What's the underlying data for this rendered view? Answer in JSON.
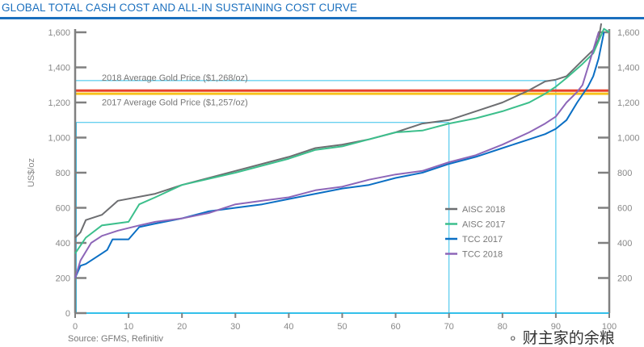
{
  "title": "GLOBAL TOTAL CASH COST AND ALL-IN SUSTAINING COST CURVE",
  "source": "Source: GFMS, Refinitiv",
  "watermark": "财主家的余粮",
  "chart_data": {
    "type": "line",
    "title": "GLOBAL TOTAL CASH COST AND ALL-IN SUSTAINING COST CURVE",
    "ylabel": "US$/oz",
    "xlabel": "",
    "xlim": [
      0,
      100
    ],
    "ylim": [
      0,
      1600
    ],
    "x_ticks": [
      0,
      10,
      20,
      30,
      40,
      50,
      60,
      70,
      80,
      90,
      100
    ],
    "y_ticks": [
      0,
      200,
      400,
      600,
      800,
      1000,
      1200,
      1400,
      1600
    ],
    "y_tick_labels": [
      "0",
      "200",
      "400",
      "600",
      "800",
      "1,000",
      "1,200",
      "1,400",
      "1,600"
    ],
    "right_y_tick_labels": [
      "200",
      "400",
      "600",
      "800",
      "1,000",
      "1,200",
      "1,400",
      "1,600"
    ],
    "right_y_ticks": [
      200,
      400,
      600,
      800,
      1000,
      1200,
      1400,
      1600
    ],
    "grid": false,
    "legend_position": "bottom-right",
    "series": [
      {
        "name": "AISC 2018",
        "color": "#6d6e71",
        "x": [
          0,
          1,
          2,
          5,
          8,
          15,
          20,
          30,
          40,
          45,
          50,
          55,
          60,
          65,
          70,
          75,
          80,
          85,
          88,
          90,
          92,
          95,
          97,
          98,
          98.5
        ],
        "y": [
          430,
          460,
          530,
          560,
          640,
          680,
          730,
          810,
          890,
          940,
          960,
          990,
          1030,
          1080,
          1100,
          1150,
          1200,
          1270,
          1320,
          1330,
          1350,
          1440,
          1500,
          1560,
          1650
        ]
      },
      {
        "name": "AISC 2017",
        "color": "#3cbf8c",
        "x": [
          0,
          2,
          5,
          10,
          12,
          15,
          20,
          30,
          40,
          45,
          50,
          55,
          60,
          65,
          70,
          75,
          80,
          85,
          88,
          90,
          92,
          95,
          97,
          98,
          99,
          100
        ],
        "y": [
          340,
          430,
          500,
          520,
          620,
          660,
          730,
          800,
          880,
          930,
          950,
          990,
          1030,
          1040,
          1080,
          1110,
          1150,
          1200,
          1250,
          1290,
          1340,
          1420,
          1480,
          1550,
          1620,
          1600
        ]
      },
      {
        "name": "TCC 2017",
        "color": "#0b6fc4",
        "x": [
          0,
          1,
          2,
          4,
          6,
          7,
          10,
          12,
          15,
          20,
          25,
          30,
          35,
          40,
          45,
          50,
          55,
          60,
          65,
          70,
          75,
          80,
          85,
          88,
          90,
          92,
          94,
          96,
          97,
          98,
          99
        ],
        "y": [
          200,
          270,
          280,
          320,
          360,
          420,
          420,
          490,
          510,
          540,
          580,
          600,
          620,
          650,
          680,
          710,
          730,
          770,
          800,
          850,
          890,
          940,
          990,
          1020,
          1050,
          1100,
          1200,
          1290,
          1350,
          1450,
          1600
        ]
      },
      {
        "name": "TCC 2018",
        "color": "#8d66b8",
        "x": [
          0,
          1,
          3,
          5,
          8,
          12,
          15,
          20,
          25,
          30,
          35,
          40,
          45,
          50,
          55,
          60,
          65,
          70,
          75,
          80,
          85,
          88,
          90,
          92,
          94,
          95,
          96,
          97,
          98
        ],
        "y": [
          200,
          300,
          400,
          440,
          470,
          500,
          520,
          540,
          570,
          620,
          640,
          660,
          700,
          720,
          760,
          790,
          810,
          860,
          900,
          960,
          1030,
          1080,
          1120,
          1200,
          1260,
          1300,
          1400,
          1500,
          1600
        ]
      }
    ],
    "reference_lines": [
      {
        "label": "2018 Average Gold Price ($1,268/oz)",
        "value": 1268,
        "color": "#e8412c"
      },
      {
        "label": "2017 Average Gold Price ($1,257/oz)",
        "value": 1257,
        "color": "#f7c11a"
      }
    ],
    "guide_lines": [
      {
        "x": 70,
        "y": 1086,
        "color": "#33c0ea"
      },
      {
        "x": 90,
        "y": 1325,
        "color": "#33c0ea"
      }
    ]
  }
}
